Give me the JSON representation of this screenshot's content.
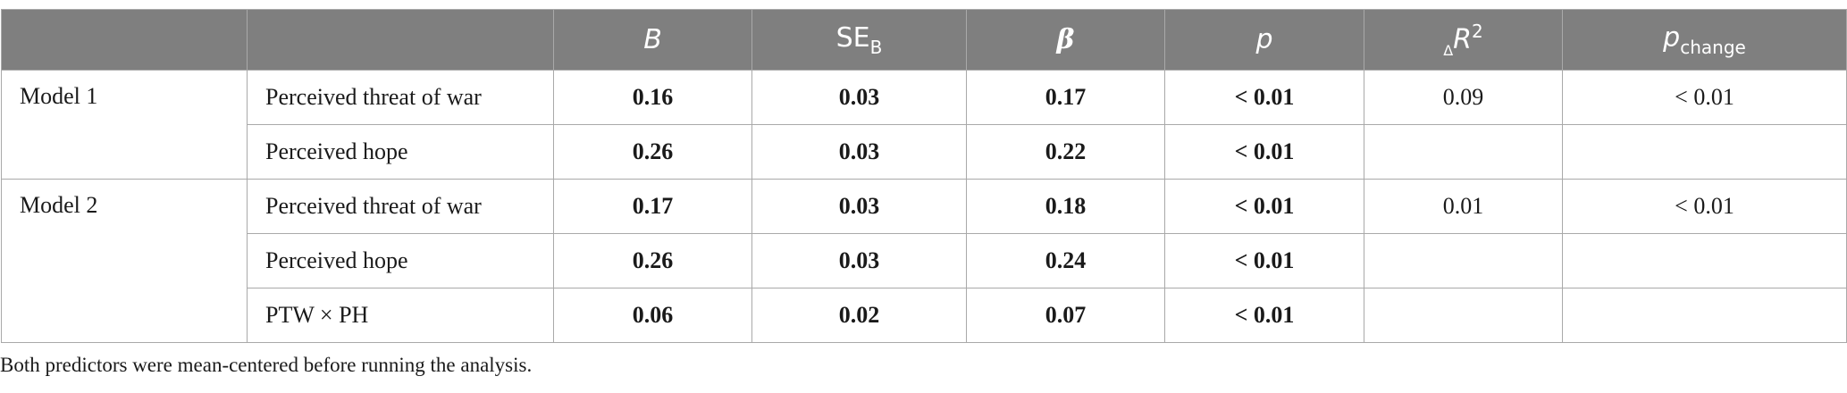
{
  "headers": {
    "col_empty1": "",
    "col_empty2": "",
    "B": "B",
    "SE_main": "SE",
    "SE_sub": "B",
    "beta": "β",
    "p": "p",
    "dR2_delta": "Δ",
    "dR2_R": "R",
    "dR2_sup": "2",
    "pchange_main": "p",
    "pchange_sub": "change"
  },
  "rows": [
    {
      "model": "Model 1",
      "predictor": "Perceived threat of war",
      "B": "0.16",
      "SE": "0.03",
      "beta": "0.17",
      "p": "< 0.01",
      "dR2": "0.09",
      "pchange": "< 0.01"
    },
    {
      "model": "",
      "predictor": "Perceived hope",
      "B": "0.26",
      "SE": "0.03",
      "beta": "0.22",
      "p": "< 0.01",
      "dR2": "",
      "pchange": ""
    },
    {
      "model": "Model 2",
      "predictor": "Perceived threat of war",
      "B": "0.17",
      "SE": "0.03",
      "beta": "0.18",
      "p": "< 0.01",
      "dR2": "0.01",
      "pchange": "< 0.01"
    },
    {
      "model": "",
      "predictor": "Perceived hope",
      "B": "0.26",
      "SE": "0.03",
      "beta": "0.24",
      "p": "< 0.01",
      "dR2": "",
      "pchange": ""
    },
    {
      "model": "",
      "predictor": "PTW × PH",
      "B": "0.06",
      "SE": "0.02",
      "beta": "0.07",
      "p": "< 0.01",
      "dR2": "",
      "pchange": ""
    }
  ],
  "note": "Both predictors were mean-centered before running the analysis."
}
